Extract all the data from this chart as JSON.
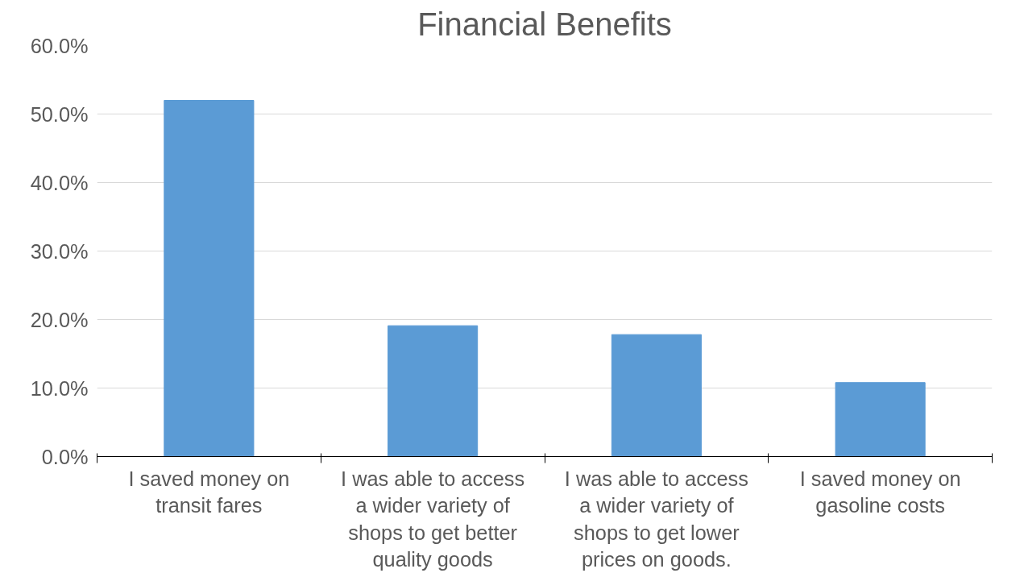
{
  "chart_data": {
    "type": "bar",
    "title": "Financial Benefits",
    "categories": [
      "I saved money on transit fares",
      "I was able to access a wider variety of shops to get better quality goods",
      "I was able to access a wider variety of shops to get lower prices on goods.",
      "I saved money on gasoline costs"
    ],
    "values": [
      52.0,
      19.1,
      17.8,
      10.8
    ],
    "color": "#5b9bd5",
    "ylim": [
      0,
      60
    ],
    "yticks": [
      {
        "value": 0,
        "label": "0.0%"
      },
      {
        "value": 10,
        "label": "10.0%"
      },
      {
        "value": 20,
        "label": "20.0%"
      },
      {
        "value": 30,
        "label": "30.0%"
      },
      {
        "value": 40,
        "label": "40.0%"
      },
      {
        "value": 50,
        "label": "50.0%"
      },
      {
        "value": 60,
        "label": "60.0%"
      }
    ],
    "grid": "y"
  }
}
